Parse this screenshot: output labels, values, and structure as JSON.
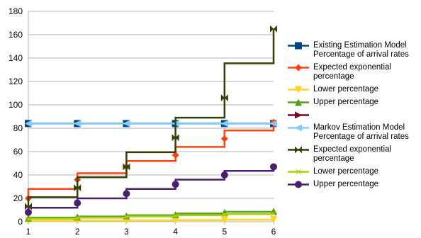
{
  "chart_data": {
    "type": "step-line",
    "x": [
      1,
      2,
      3,
      4,
      5,
      6
    ],
    "xlim": [
      1,
      6
    ],
    "xticks": [
      1,
      2,
      3,
      4,
      5,
      6
    ],
    "ylim": [
      0,
      180
    ],
    "yticks": [
      0,
      20,
      40,
      60,
      80,
      100,
      120,
      140,
      160,
      180
    ],
    "grid": true,
    "series": [
      {
        "name": "Existing Estimation Model Percentage of arrival rates",
        "color": "#004586",
        "marker": "square",
        "values": [
          84,
          84,
          84,
          84,
          84,
          84
        ]
      },
      {
        "name": "Expected exponential percentage",
        "color": "#ff420e",
        "marker": "diamond",
        "values": [
          20,
          36,
          47,
          57,
          71,
          85
        ]
      },
      {
        "name": "Lower percentage",
        "color": "#ffd320",
        "marker": "triangle-down",
        "values": [
          0.5,
          0.8,
          1,
          1.2,
          1.5,
          1.8
        ]
      },
      {
        "name": "Upper percentage",
        "color": "#579d1c",
        "marker": "triangle-up",
        "values": [
          3,
          4,
          5,
          6,
          8,
          9
        ]
      },
      {
        "name": null,
        "color": "#7e0021",
        "marker": "arrow-right",
        "values": [
          null,
          null,
          null,
          null,
          null,
          null
        ]
      },
      {
        "name": "Markov Estimation Model Percentage of arrival rates",
        "color": "#83caff",
        "marker": "arrow-left",
        "values": [
          84,
          84,
          84,
          84,
          84,
          84
        ]
      },
      {
        "name": "Expected exponential percentage",
        "color": "#314004",
        "marker": "bowtie",
        "values": [
          13,
          29,
          47,
          72,
          106,
          165
        ]
      },
      {
        "name": "Lower percentage",
        "color": "#aecf00",
        "marker": "cross",
        "values": [
          2,
          3,
          4,
          5,
          6,
          7
        ]
      },
      {
        "name": "Upper percentage",
        "color": "#4b1f6f",
        "marker": "circle",
        "values": [
          8,
          16,
          24,
          32,
          40,
          47
        ]
      }
    ]
  }
}
